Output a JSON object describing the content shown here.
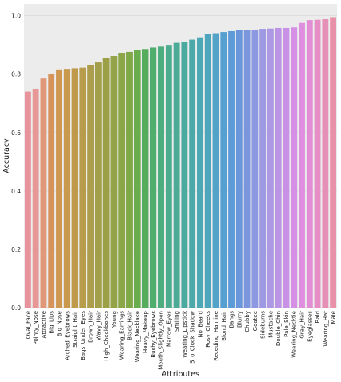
{
  "chart_data": {
    "type": "bar",
    "title": "",
    "xlabel": "Attributes",
    "ylabel": "Accuracy",
    "ylim": [
      0,
      1.04
    ],
    "yticks": [
      0.0,
      0.2,
      0.4,
      0.6,
      0.8,
      1.0
    ],
    "ytick_labels": [
      "0.0",
      "0.2",
      "0.4",
      "0.6",
      "0.8",
      "1.0"
    ],
    "grid": true,
    "legend": "none",
    "background": "#ececec",
    "grid_color": "#d7d7d7",
    "categories": [
      "Oval_Face",
      "Pointy_Nose",
      "Attractive",
      "Big_Lips",
      "Big_Nose",
      "Arched_Eyebrows",
      "Straight_Hair",
      "Bags_Under_Eyes",
      "Brown_Hair",
      "Wavy_Hair",
      "High_Cheekbones",
      "Young",
      "Wearing_Earrings",
      "Black_Hair",
      "Wearing_Necklace",
      "Heavy_Makeup",
      "Bushy_Eyebrows",
      "Mouth_Slightly_Open",
      "Narrow_Eyes",
      "Smiling",
      "Wearing_Lipstick",
      "5_o_Clock_Shadow",
      "No_Beard",
      "Rosy_Cheeks",
      "Receding_Hairline",
      "Blond_Hair",
      "Bangs",
      "Blurry",
      "Chubby",
      "Goatee",
      "Sideburns",
      "Mustache",
      "Double_Chin",
      "Pale_Skin",
      "Wearing_Necktie",
      "Gray_Hair",
      "Eyeglasses",
      "Bald",
      "Wearing_Hat",
      "Male"
    ],
    "values": [
      0.74,
      0.75,
      0.785,
      0.802,
      0.816,
      0.818,
      0.82,
      0.822,
      0.832,
      0.84,
      0.854,
      0.862,
      0.873,
      0.876,
      0.882,
      0.886,
      0.891,
      0.894,
      0.9,
      0.907,
      0.911,
      0.918,
      0.926,
      0.936,
      0.94,
      0.944,
      0.947,
      0.95,
      0.95,
      0.952,
      0.955,
      0.956,
      0.958,
      0.958,
      0.96,
      0.975,
      0.985,
      0.986,
      0.988,
      0.995
    ],
    "colors": [
      "#e8929b",
      "#e89797",
      "#e19878",
      "#d7945a",
      "#cf9850",
      "#c99a4d",
      "#bf9a4b",
      "#b79c4c",
      "#ac9e4c",
      "#a39e4a",
      "#9ba047",
      "#93a348",
      "#8aa646",
      "#7fa846",
      "#6aad4e",
      "#55ac5c",
      "#4fad6e",
      "#4dad7e",
      "#4cad8e",
      "#4bab97",
      "#4baaa0",
      "#4ba9aa",
      "#4ca8b4",
      "#4ea6bd",
      "#51a3c7",
      "#56a0d1",
      "#5d9bd8",
      "#6a97db",
      "#7c96de",
      "#8c98e1",
      "#9d99e3",
      "#ad98e4",
      "#bb94e5",
      "#c991e6",
      "#d58fe4",
      "#de8fdd",
      "#e28ed4",
      "#e58fc6",
      "#e790b7",
      "#e891a8"
    ]
  }
}
